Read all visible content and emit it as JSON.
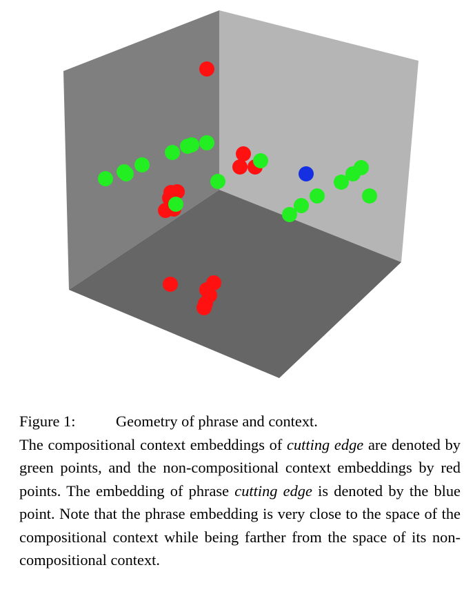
{
  "colors": {
    "back_wall": "#b5b5b5",
    "left_wall": "#7f7f7f",
    "floor": "#666666",
    "compositional": "#22ee22",
    "non_compositional": "#ff1111",
    "phrase": "#1530e0"
  },
  "caption": {
    "label": "Figure 1:",
    "title": "Geometry of phrase and context.",
    "s1_pre": "The compositional context embeddings of ",
    "s1_em": "cutting edge",
    "s1_post": " are denoted by green points, and the non-compositional context embeddings by red points.  The embedding of phrase ",
    "s2_em": "cutting edge",
    "s2_post": " is denoted by the blue point.  Note that the phrase embedding is very close to the space of the compositional context while being farther from the space of its non-compositional context."
  },
  "chart_data": {
    "type": "scatter",
    "dimensions": 3,
    "axes_visible": false,
    "series": [
      {
        "role": "compositional",
        "color": "#22ee22",
        "count": 17
      },
      {
        "role": "non-compositional",
        "color": "#ff1111",
        "count": 16
      },
      {
        "role": "phrase",
        "color": "#1530e0",
        "count": 1
      }
    ]
  }
}
